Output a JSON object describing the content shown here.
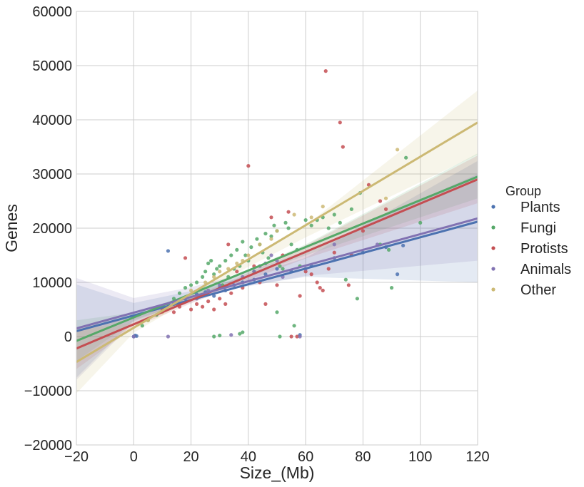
{
  "chart_data": {
    "type": "scatter",
    "title": "",
    "xlabel": "Size_(Mb)",
    "ylabel": "Genes",
    "xlim": [
      -20,
      120
    ],
    "ylim": [
      -20000,
      60000
    ],
    "xticks": [
      -20,
      0,
      20,
      40,
      60,
      80,
      100,
      120
    ],
    "yticks": [
      -20000,
      -10000,
      0,
      10000,
      20000,
      30000,
      40000,
      50000,
      60000
    ],
    "xtick_labels": [
      "−20",
      "0",
      "20",
      "40",
      "60",
      "80",
      "100",
      "120"
    ],
    "ytick_labels": [
      "−20000",
      "−10000",
      "0",
      "10000",
      "20000",
      "30000",
      "40000",
      "50000",
      "60000"
    ],
    "grid": true,
    "legend": {
      "title": "Group",
      "placement": "right"
    },
    "series": [
      {
        "name": "Plants",
        "color": "#4C72B0",
        "points": [
          [
            0,
            0
          ],
          [
            0.5,
            200
          ],
          [
            1,
            100
          ],
          [
            12,
            15800
          ],
          [
            14,
            6000
          ],
          [
            18,
            7000
          ],
          [
            22,
            7800
          ],
          [
            25,
            8200
          ],
          [
            28,
            7500
          ],
          [
            30,
            9000
          ],
          [
            32,
            8500
          ],
          [
            35,
            9500
          ],
          [
            38,
            10000
          ],
          [
            42,
            10500
          ],
          [
            46,
            11500
          ],
          [
            50,
            12500
          ],
          [
            55,
            12000
          ],
          [
            58,
            300
          ],
          [
            62,
            13000
          ],
          [
            70,
            14500
          ],
          [
            80,
            15500
          ],
          [
            88,
            16500
          ],
          [
            92,
            11500
          ],
          [
            94,
            16800
          ]
        ],
        "fit": [
          [
            -20,
            1000
          ],
          [
            120,
            21200
          ]
        ],
        "band": [
          [
            -20,
            -7600,
            9600
          ],
          [
            0,
            3000,
            6200
          ],
          [
            20,
            6700,
            8400
          ],
          [
            35,
            9000,
            10500
          ],
          [
            60,
            11000,
            14500
          ],
          [
            120,
            10000,
            32400
          ]
        ]
      },
      {
        "name": "Fungi",
        "color": "#55A868",
        "points": [
          [
            3,
            2000
          ],
          [
            5,
            3000
          ],
          [
            8,
            4000
          ],
          [
            10,
            5500
          ],
          [
            12,
            6000
          ],
          [
            14,
            7000
          ],
          [
            16,
            8000
          ],
          [
            18,
            9000
          ],
          [
            20,
            9500
          ],
          [
            22,
            10000
          ],
          [
            24,
            11000
          ],
          [
            25,
            12000
          ],
          [
            26,
            13500
          ],
          [
            27,
            14000
          ],
          [
            28,
            11500
          ],
          [
            29,
            12500
          ],
          [
            30,
            13000
          ],
          [
            31,
            9500
          ],
          [
            32,
            14000
          ],
          [
            33,
            11000
          ],
          [
            34,
            15000
          ],
          [
            35,
            12500
          ],
          [
            36,
            16000
          ],
          [
            37,
            13000
          ],
          [
            38,
            17500
          ],
          [
            39,
            15000
          ],
          [
            40,
            14000
          ],
          [
            41,
            16500
          ],
          [
            42,
            12000
          ],
          [
            43,
            18000
          ],
          [
            44,
            17000
          ],
          [
            45,
            15500
          ],
          [
            46,
            19000
          ],
          [
            47,
            14500
          ],
          [
            48,
            18500
          ],
          [
            49,
            20500
          ],
          [
            50,
            19500
          ],
          [
            51,
            13000
          ],
          [
            52,
            12500
          ],
          [
            53,
            21000
          ],
          [
            54,
            20000
          ],
          [
            55,
            17000
          ],
          [
            57,
            16000
          ],
          [
            58,
            13000
          ],
          [
            60,
            21500
          ],
          [
            62,
            20500
          ],
          [
            64,
            21500
          ],
          [
            66,
            22000
          ],
          [
            68,
            20000
          ],
          [
            70,
            22500
          ],
          [
            72,
            21000
          ],
          [
            74,
            10500
          ],
          [
            76,
            23500
          ],
          [
            78,
            7000
          ],
          [
            79,
            26500
          ],
          [
            86,
            17000
          ],
          [
            89,
            16000
          ],
          [
            90,
            9000
          ],
          [
            95,
            33000
          ],
          [
            100,
            21000
          ],
          [
            28,
            0
          ],
          [
            30,
            200
          ],
          [
            37,
            500
          ],
          [
            38,
            800
          ],
          [
            50,
            4500
          ],
          [
            51,
            0
          ],
          [
            56,
            2000
          ]
        ],
        "fit": [
          [
            -20,
            -800
          ],
          [
            120,
            29500
          ]
        ],
        "band": [
          [
            -20,
            -4500,
            3000
          ],
          [
            0,
            2800,
            4400
          ],
          [
            20,
            6800,
            7800
          ],
          [
            35,
            10000,
            11200
          ],
          [
            60,
            15000,
            17000
          ],
          [
            120,
            25500,
            33800
          ]
        ]
      },
      {
        "name": "Protists",
        "color": "#C44E52",
        "points": [
          [
            10,
            5000
          ],
          [
            14,
            4500
          ],
          [
            16,
            5500
          ],
          [
            18,
            14500
          ],
          [
            20,
            5000
          ],
          [
            22,
            6000
          ],
          [
            24,
            5500
          ],
          [
            26,
            6500
          ],
          [
            28,
            5000
          ],
          [
            30,
            7000
          ],
          [
            32,
            6000
          ],
          [
            33,
            17000
          ],
          [
            34,
            8000
          ],
          [
            36,
            12000
          ],
          [
            38,
            9000
          ],
          [
            40,
            31500
          ],
          [
            42,
            13000
          ],
          [
            44,
            10000
          ],
          [
            46,
            6000
          ],
          [
            48,
            22000
          ],
          [
            50,
            9500
          ],
          [
            52,
            15000
          ],
          [
            54,
            23000
          ],
          [
            55,
            0
          ],
          [
            57,
            0
          ],
          [
            58,
            7500
          ],
          [
            60,
            12000
          ],
          [
            62,
            11500
          ],
          [
            64,
            10000
          ],
          [
            65,
            9000
          ],
          [
            66,
            8500
          ],
          [
            67,
            49000
          ],
          [
            68,
            12500
          ],
          [
            70,
            15500
          ],
          [
            72,
            39500
          ],
          [
            73,
            35000
          ],
          [
            75,
            9500
          ],
          [
            76,
            15000
          ],
          [
            80,
            19500
          ],
          [
            82,
            28000
          ],
          [
            86,
            25000
          ],
          [
            88,
            23500
          ]
        ],
        "fit": [
          [
            -20,
            -2200
          ],
          [
            120,
            29000
          ]
        ],
        "band": [
          [
            -20,
            -6000,
            1600
          ],
          [
            0,
            1700,
            3500
          ],
          [
            20,
            6100,
            7300
          ],
          [
            35,
            9400,
            10500
          ],
          [
            60,
            14400,
            16800
          ],
          [
            120,
            24600,
            33400
          ]
        ]
      },
      {
        "name": "Animals",
        "color": "#8172B2",
        "points": [
          [
            0,
            0
          ],
          [
            12,
            0
          ],
          [
            22,
            7000
          ],
          [
            26,
            8500
          ],
          [
            30,
            9500
          ],
          [
            34,
            300
          ],
          [
            38,
            11000
          ],
          [
            42,
            12000
          ],
          [
            44,
            13000
          ],
          [
            46,
            13500
          ],
          [
            48,
            15000
          ],
          [
            50,
            14000
          ],
          [
            52,
            11000
          ],
          [
            58,
            0
          ],
          [
            60,
            12500
          ],
          [
            70,
            17000
          ],
          [
            85,
            17000
          ]
        ],
        "fit": [
          [
            -20,
            1500
          ],
          [
            120,
            21800
          ]
        ],
        "band": [
          [
            -20,
            -8000,
            10800
          ],
          [
            0,
            2600,
            7100
          ],
          [
            20,
            6300,
            9100
          ],
          [
            35,
            8800,
            11200
          ],
          [
            60,
            11200,
            15700
          ],
          [
            120,
            14000,
            30000
          ]
        ]
      },
      {
        "name": "Other",
        "color": "#CCB974",
        "points": [
          [
            5,
            3000
          ],
          [
            10,
            4500
          ],
          [
            15,
            6000
          ],
          [
            20,
            8500
          ],
          [
            25,
            10000
          ],
          [
            28,
            11000
          ],
          [
            30,
            12000
          ],
          [
            33,
            12500
          ],
          [
            36,
            13500
          ],
          [
            38,
            14000
          ],
          [
            40,
            15000
          ],
          [
            44,
            17000
          ],
          [
            48,
            18000
          ],
          [
            50,
            19500
          ],
          [
            56,
            22500
          ],
          [
            62,
            22000
          ],
          [
            66,
            24000
          ],
          [
            88,
            25500
          ],
          [
            92,
            34500
          ]
        ],
        "fit": [
          [
            -20,
            -4700
          ],
          [
            120,
            39500
          ]
        ],
        "band": [
          [
            -20,
            -10500,
            1200
          ],
          [
            0,
            700,
            2500
          ],
          [
            20,
            6900,
            7900
          ],
          [
            35,
            11500,
            12500
          ],
          [
            60,
            18300,
            20500
          ],
          [
            120,
            33600,
            45400
          ]
        ]
      }
    ]
  }
}
